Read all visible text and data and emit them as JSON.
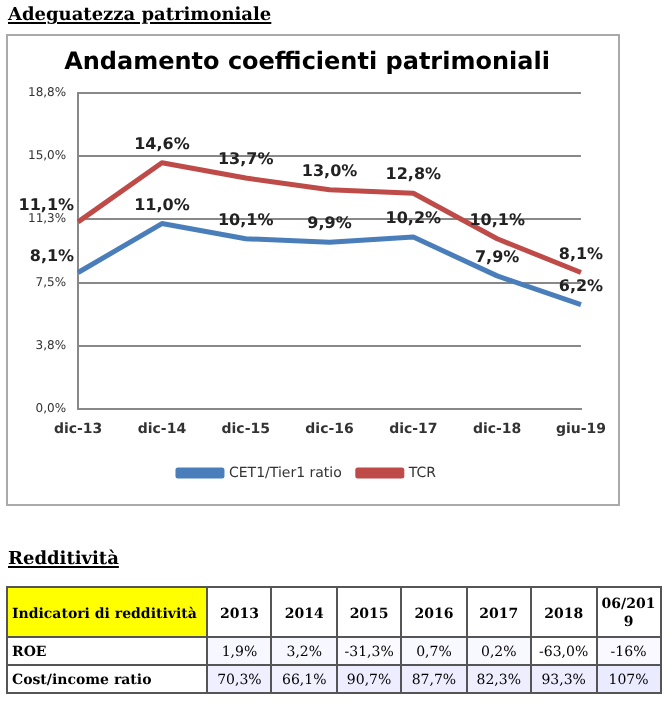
{
  "chart_data": [
    {
      "type": "line",
      "title": "Andamento coefficienti patrimoniali",
      "annotations": [
        "Adeguatezza patrimoniale"
      ],
      "categories": [
        "dic-13",
        "dic-14",
        "dic-15",
        "dic-16",
        "dic-17",
        "dic-18",
        "giu-19"
      ],
      "series": [
        {
          "name": "CET1/Tier1 ratio",
          "color": "#4a7ebb",
          "values": [
            8.1,
            11.0,
            10.1,
            9.9,
            10.2,
            7.9,
            6.2
          ],
          "value_labels": [
            "8,1%",
            "11,0%",
            "10,1%",
            "9,9%",
            "10,2%",
            "7,9%",
            "6,2%"
          ]
        },
        {
          "name": "TCR",
          "color": "#be4b48",
          "values": [
            11.1,
            14.6,
            13.7,
            13.0,
            12.8,
            10.1,
            8.1
          ],
          "value_labels": [
            "11,1%",
            "14,6%",
            "13,7%",
            "13,0%",
            "12,8%",
            "10,1%",
            "8,1%"
          ]
        }
      ],
      "ylim": [
        0,
        18.75
      ],
      "yticks": [
        {
          "value": 0,
          "label": "0,0%"
        },
        {
          "value": 3.75,
          "label": "3,8%"
        },
        {
          "value": 7.5,
          "label": "7,5%"
        },
        {
          "value": 11.25,
          "label": "11,3%"
        },
        {
          "value": 15,
          "label": "15,0%"
        },
        {
          "value": 18.75,
          "label": "18,8%"
        }
      ],
      "grid": "y",
      "legend": "bottom",
      "marker": "none",
      "line_style": "solid"
    },
    {
      "type": "heatmap",
      "title": "Redditività",
      "ylabel": "Indicatori di redditività",
      "categories": [
        "2013",
        "2014",
        "2015",
        "2016",
        "2017",
        "2018",
        "06/2019"
      ],
      "y_categories": [
        "ROE",
        "Cost/income ratio"
      ],
      "cells": [
        [
          1.9,
          3.2,
          -31.3,
          0.7,
          0.2,
          -63.0,
          -16
        ],
        [
          70.3,
          66.1,
          90.7,
          87.7,
          82.3,
          93.3,
          107
        ]
      ],
      "cell_labels": [
        [
          "1,9%",
          "3,2%",
          "-31,3%",
          "0,7%",
          "0,2%",
          "-63,0%",
          "-16%"
        ],
        [
          "70,3%",
          "66,1%",
          "90,7%",
          "87,7%",
          "82,3%",
          "93,3%",
          "107%"
        ]
      ]
    }
  ]
}
